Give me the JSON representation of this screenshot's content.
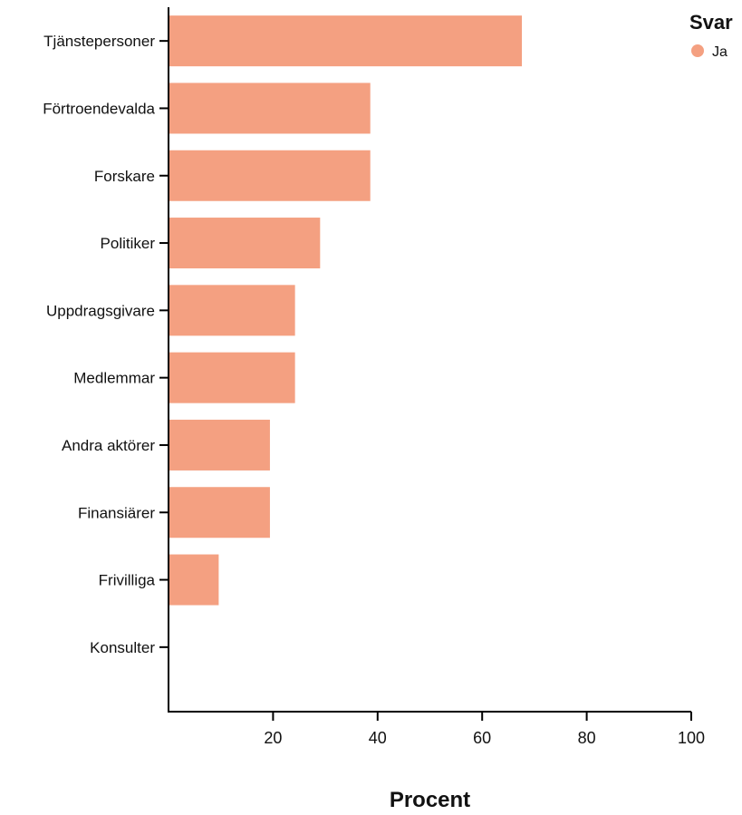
{
  "chart_data": {
    "type": "bar",
    "orientation": "horizontal",
    "title": "",
    "xlabel": "Procent",
    "ylabel": "",
    "xlim": [
      0,
      100
    ],
    "x_ticks": [
      20,
      40,
      60,
      80,
      100
    ],
    "grid": false,
    "legend_placement": "top-right",
    "legend": {
      "title": "Svar",
      "entries": [
        {
          "label": "Ja",
          "color": "#f4a081"
        }
      ]
    },
    "categories": [
      "Tjänstepersoner",
      "Förtroendevalda",
      "Forskare",
      "Politiker",
      "Uppdragsgivare",
      "Medlemmar",
      "Andra aktörer",
      "Finansiärer",
      "Frivilliga",
      "Konsulter"
    ],
    "series": [
      {
        "name": "Ja",
        "color": "#f4a081",
        "values": [
          67.6,
          38.6,
          38.6,
          29.0,
          24.2,
          24.2,
          19.4,
          19.4,
          9.6,
          0
        ]
      }
    ]
  }
}
